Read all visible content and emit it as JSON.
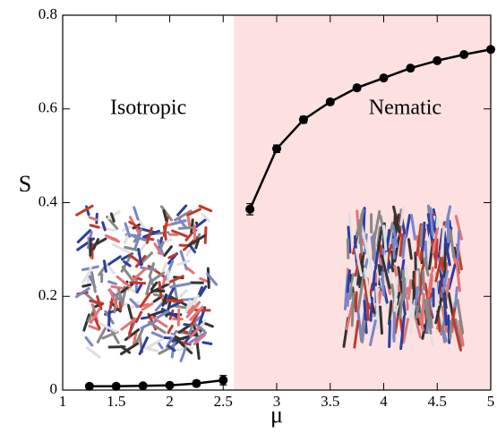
{
  "chart_data": {
    "type": "line",
    "xlabel": "μ",
    "ylabel": "S",
    "xlim": [
      1,
      5
    ],
    "ylim": [
      0,
      0.8
    ],
    "xticks": [
      1,
      1.5,
      2,
      2.5,
      3,
      3.5,
      4,
      4.5,
      5
    ],
    "yticks": [
      0,
      0.2,
      0.4,
      0.6,
      0.8
    ],
    "shaded_xrange": [
      2.6,
      5
    ],
    "shade_color": "#fde1e1",
    "annotations": [
      {
        "text": "Isotropic",
        "x": 1.8,
        "y": 0.6
      },
      {
        "text": "Nematic",
        "x": 4.2,
        "y": 0.6
      }
    ],
    "series": [
      {
        "color": "#000000",
        "x": [
          1.25,
          1.5,
          1.75,
          2,
          2.25,
          2.5
        ],
        "values": [
          0.008,
          0.008,
          0.009,
          0.01,
          0.014,
          0.021
        ],
        "errors": [
          0.005,
          0.005,
          0.005,
          0.005,
          0.006,
          0.01
        ]
      },
      {
        "color": "#000000",
        "x": [
          2.75,
          3,
          3.25,
          3.5,
          3.75,
          4,
          4.25,
          4.5,
          4.75,
          5
        ],
        "values": [
          0.386,
          0.515,
          0.577,
          0.615,
          0.645,
          0.666,
          0.687,
          0.703,
          0.716,
          0.727
        ],
        "errors": [
          0.012,
          0.008,
          0.007,
          0.006,
          0.006,
          0.005,
          0.005,
          0.005,
          0.005,
          0.005
        ]
      }
    ]
  }
}
